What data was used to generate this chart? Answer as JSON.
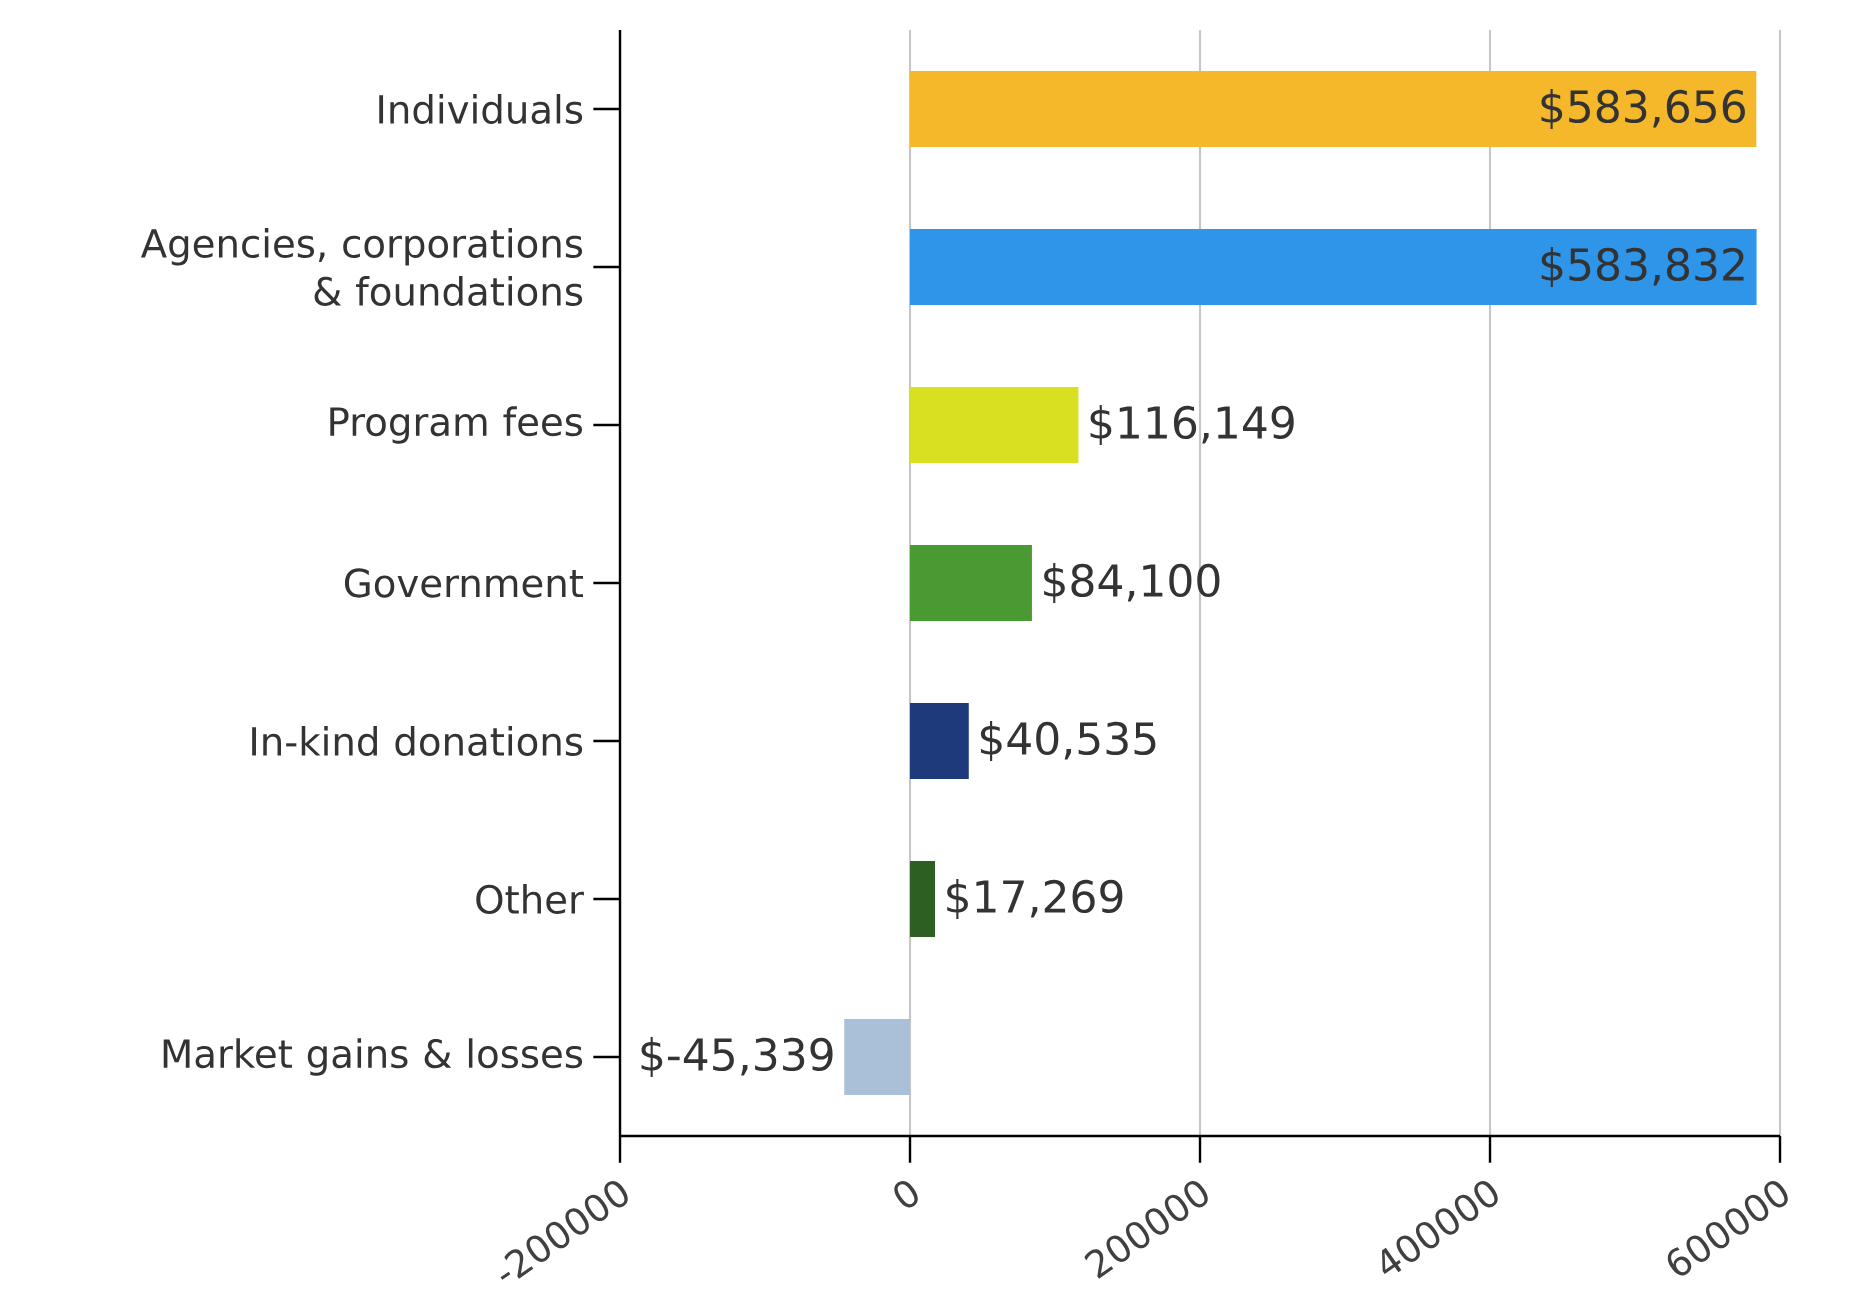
{
  "chart_data": {
    "type": "bar",
    "orientation": "horizontal",
    "categories": [
      "Individuals",
      "Agencies, corporations & foundations",
      "Program fees",
      "Government",
      "In-kind donations",
      "Other",
      "Market gains & losses"
    ],
    "values": [
      583656,
      583832,
      116149,
      84100,
      40535,
      17269,
      -45339
    ],
    "value_labels": [
      "$583,656",
      "$583,832",
      "$116,149",
      "$84,100",
      "$40,535",
      "$17,269",
      "$-45,339"
    ],
    "colors": [
      "#f5b82a",
      "#2f95e8",
      "#d8e021",
      "#4a9a33",
      "#1f3a7a",
      "#2d5f22",
      "#a9c0d8"
    ],
    "xlim": [
      -200000,
      600000
    ],
    "xticks": [
      -200000,
      0,
      200000,
      400000,
      600000
    ],
    "grid": "x"
  }
}
